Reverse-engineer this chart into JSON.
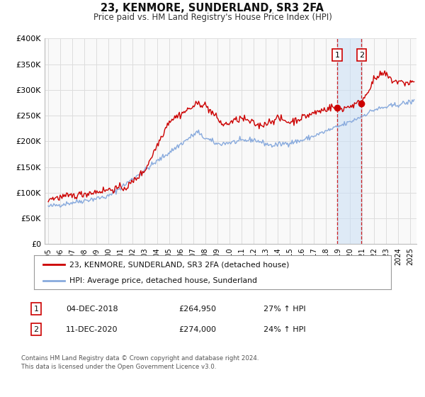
{
  "title": "23, KENMORE, SUNDERLAND, SR3 2FA",
  "subtitle": "Price paid vs. HM Land Registry's House Price Index (HPI)",
  "ylim": [
    0,
    400000
  ],
  "yticks": [
    0,
    50000,
    100000,
    150000,
    200000,
    250000,
    300000,
    350000,
    400000
  ],
  "ytick_labels": [
    "£0",
    "£50K",
    "£100K",
    "£150K",
    "£200K",
    "£250K",
    "£300K",
    "£350K",
    "£400K"
  ],
  "xlim_start": 1994.7,
  "xlim_end": 2025.5,
  "line1_color": "#cc0000",
  "line2_color": "#88aadd",
  "bg_color": "#ffffff",
  "plot_bg_color": "#f9f9f9",
  "grid_color": "#dddddd",
  "marker1_x": 2018.92,
  "marker1_y": 264950,
  "marker2_x": 2020.95,
  "marker2_y": 274000,
  "vline1_x": 2018.92,
  "vline2_x": 2020.95,
  "shade_start": 2018.92,
  "shade_end": 2020.95,
  "legend_line1": "23, KENMORE, SUNDERLAND, SR3 2FA (detached house)",
  "legend_line2": "HPI: Average price, detached house, Sunderland",
  "annotation1_label": "1",
  "annotation1_date": "04-DEC-2018",
  "annotation1_price": "£264,950",
  "annotation1_hpi": "27% ↑ HPI",
  "annotation2_label": "2",
  "annotation2_date": "11-DEC-2020",
  "annotation2_price": "£274,000",
  "annotation2_hpi": "24% ↑ HPI",
  "footer": "Contains HM Land Registry data © Crown copyright and database right 2024.\nThis data is licensed under the Open Government Licence v3.0."
}
